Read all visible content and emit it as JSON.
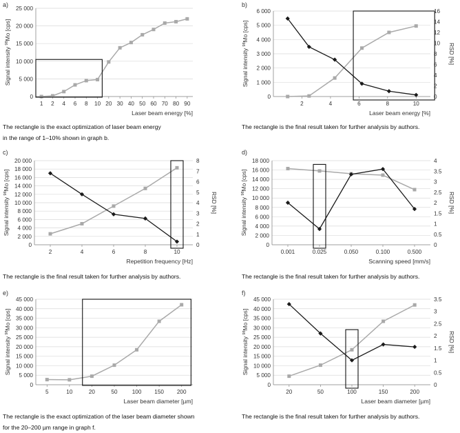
{
  "figure": {
    "panels": [
      {
        "letter": "a)",
        "caption_lines": [
          "The rectangle is the exact optimization of laser beam energy",
          "in the range of 1–10% shown in graph b."
        ]
      },
      {
        "letter": "b)",
        "caption_lines": [
          "The rectangle is the final result taken for further analysis by authors."
        ]
      },
      {
        "letter": "c)",
        "caption_lines": [
          "The rectangle is the final result taken for further analysis by authors."
        ]
      },
      {
        "letter": "d)",
        "caption_lines": [
          "The rectangle is the final result taken for further analysis by authors."
        ]
      },
      {
        "letter": "e)",
        "caption_lines": [
          "The rectangle is the exact optimization of the laser beam diameter shown",
          "for the 20–200 µm range in graph f."
        ]
      },
      {
        "letter": "f)",
        "caption_lines": [
          "The rectangle is the final result taken for further analysis by authors."
        ]
      }
    ]
  },
  "chart_data": [
    {
      "type": "line",
      "panel": "a",
      "title": "",
      "xlabel": "Laser beam energy [%]",
      "ylabel": "Signal intensity 98Mo [cps]",
      "categories": [
        "1",
        "2",
        "4",
        "6",
        "8",
        "10",
        "20",
        "30",
        "40",
        "50",
        "60",
        "70",
        "80",
        "90"
      ],
      "ylim": [
        0,
        25000
      ],
      "yticks": [
        0,
        5000,
        10000,
        15000,
        20000,
        25000
      ],
      "series": [
        {
          "name": "Signal intensity",
          "axis": "left",
          "color": "#a9a9a9",
          "marker": "square",
          "values": [
            0,
            200,
            1400,
            3300,
            4500,
            4800,
            9800,
            13800,
            15300,
            17500,
            19000,
            20800,
            21200,
            22000
          ]
        }
      ],
      "highlight": {
        "from_category": 0,
        "to_category": 5,
        "y_from": 0,
        "y_to": 10500
      }
    },
    {
      "type": "line",
      "panel": "b",
      "title": "",
      "xlabel": "Laser beam energy [%]",
      "ylabel": "Signal intensity 98Mo [cps]",
      "y2label": "RSD [%]",
      "x_numeric": true,
      "xlim": [
        0,
        11
      ],
      "xticks": [
        2,
        4,
        6,
        8,
        10
      ],
      "ylim": [
        0,
        6000
      ],
      "yticks": [
        0,
        1000,
        2000,
        3000,
        4000,
        5000,
        6000
      ],
      "y2lim": [
        0,
        16
      ],
      "y2ticks": [
        0,
        2,
        4,
        6,
        8,
        10,
        12,
        14,
        16
      ],
      "series": [
        {
          "name": "Signal intensity",
          "axis": "left",
          "color": "#a9a9a9",
          "marker": "square",
          "x": [
            1,
            2.5,
            4.3,
            6.2,
            8.1,
            10
          ],
          "values": [
            0,
            40,
            1300,
            3400,
            4500,
            4950
          ]
        },
        {
          "name": "RSD",
          "axis": "right",
          "color": "#1a1a1a",
          "marker": "diamond",
          "x": [
            1,
            2.5,
            4.3,
            6.2,
            8.1,
            10
          ],
          "values": [
            14.6,
            9.3,
            6.9,
            2.4,
            1.0,
            0.3
          ]
        }
      ],
      "highlight": {
        "x_from": 5.6,
        "x_to": 11.3,
        "y_from": 0,
        "y_to": 6000
      }
    },
    {
      "type": "line",
      "panel": "c",
      "title": "",
      "xlabel": "Repetition frequency [Hz]",
      "ylabel": "Signal intensity 98Mo [cps]",
      "y2label": "RSD [%]",
      "categories": [
        "2",
        "4",
        "6",
        "8",
        "10"
      ],
      "ylim": [
        0,
        20000
      ],
      "yticks": [
        0,
        2000,
        4000,
        6000,
        8000,
        10000,
        12000,
        14000,
        16000,
        18000,
        20000
      ],
      "y2lim": [
        0,
        8
      ],
      "y2ticks": [
        0,
        1,
        2,
        3,
        4,
        5,
        6,
        7,
        8
      ],
      "series": [
        {
          "name": "Signal intensity",
          "axis": "left",
          "color": "#a9a9a9",
          "marker": "square",
          "values": [
            2600,
            5000,
            9200,
            13400,
            18300
          ]
        },
        {
          "name": "RSD",
          "axis": "right",
          "color": "#1a1a1a",
          "marker": "diamond",
          "values": [
            6.8,
            4.8,
            2.9,
            2.5,
            0.3
          ]
        }
      ],
      "highlight": {
        "from_category": 4,
        "to_category": 4,
        "y_from": 0,
        "y_to": 20000
      }
    },
    {
      "type": "line",
      "panel": "d",
      "title": "",
      "xlabel": "Scanning speed [mm/s]",
      "ylabel": "Signal intensity 98Mo [cps]",
      "y2label": "RSD [%]",
      "categories": [
        "0.001",
        "0.025",
        "0.050",
        "0.100",
        "0.500"
      ],
      "ylim": [
        0,
        18000
      ],
      "yticks": [
        0,
        2000,
        4000,
        6000,
        8000,
        10000,
        12000,
        14000,
        16000,
        18000
      ],
      "y2lim": [
        0,
        4
      ],
      "y2ticks": [
        0,
        0.5,
        1,
        1.5,
        2,
        2.5,
        3,
        3.5,
        4
      ],
      "series": [
        {
          "name": "Signal intensity",
          "axis": "left",
          "color": "#a9a9a9",
          "marker": "square",
          "values": [
            16300,
            15800,
            15200,
            14900,
            11800
          ]
        },
        {
          "name": "RSD",
          "axis": "right",
          "color": "#1a1a1a",
          "marker": "diamond",
          "values": [
            2.0,
            0.75,
            3.35,
            3.6,
            1.7
          ]
        }
      ],
      "highlight": {
        "from_category": 1,
        "to_category": 1,
        "y_from": 0,
        "y_to": 17200
      }
    },
    {
      "type": "line",
      "panel": "e",
      "title": "",
      "xlabel": "Laser beam diameter [µm]",
      "ylabel": "Signal intensity 98Mo [cps]",
      "categories": [
        "5",
        "10",
        "20",
        "50",
        "100",
        "150",
        "200"
      ],
      "ylim": [
        0,
        45000
      ],
      "yticks": [
        0,
        5000,
        10000,
        15000,
        20000,
        25000,
        30000,
        35000,
        40000,
        45000
      ],
      "series": [
        {
          "name": "Signal intensity",
          "axis": "left",
          "color": "#a9a9a9",
          "marker": "square",
          "values": [
            2700,
            2600,
            4500,
            10300,
            18400,
            33400,
            42100
          ]
        }
      ],
      "highlight": {
        "from_category": 2,
        "to_category": 6,
        "y_from": 0,
        "y_to": 45000
      }
    },
    {
      "type": "line",
      "panel": "f",
      "title": "",
      "xlabel": "Laser beam diameter [µm]",
      "ylabel": "Signal intensity 98Mo [cps]",
      "y2label": "RSD [%]",
      "categories": [
        "20",
        "50",
        "100",
        "150",
        "200"
      ],
      "ylim": [
        0,
        45000
      ],
      "yticks": [
        0,
        5000,
        10000,
        15000,
        20000,
        25000,
        30000,
        35000,
        40000,
        45000
      ],
      "y2lim": [
        0,
        3.5
      ],
      "y2ticks": [
        0,
        0.5,
        1,
        1.5,
        2,
        2.5,
        3,
        3.5
      ],
      "series": [
        {
          "name": "Signal intensity",
          "axis": "left",
          "color": "#a9a9a9",
          "marker": "square",
          "values": [
            4500,
            10300,
            18400,
            33400,
            42000
          ]
        },
        {
          "name": "RSD",
          "axis": "right",
          "color": "#1a1a1a",
          "marker": "diamond",
          "values": [
            3.3,
            2.1,
            1.0,
            1.65,
            1.55
          ]
        }
      ],
      "highlight": {
        "from_category": 2,
        "to_category": 2,
        "y_from": 0,
        "y_to": 29000
      }
    }
  ]
}
